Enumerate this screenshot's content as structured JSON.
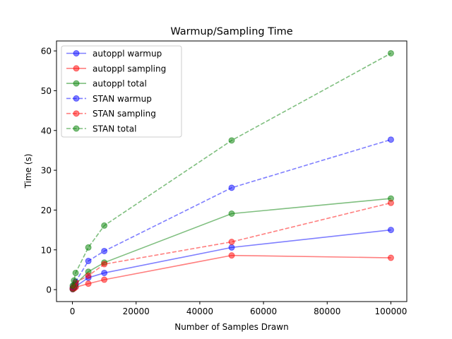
{
  "chart_data": {
    "type": "line",
    "title": "Warmup/Sampling Time",
    "xlabel": "Number of Samples Drawn",
    "ylabel": "Time (s)",
    "xlim": [
      -5000,
      105000
    ],
    "ylim": [
      -3,
      62.5
    ],
    "x_ticks": [
      0,
      20000,
      40000,
      60000,
      80000,
      100000
    ],
    "y_ticks": [
      0,
      10,
      20,
      30,
      40,
      50,
      60
    ],
    "grid": false,
    "legend_position": "top-left",
    "x": [
      100,
      500,
      1000,
      5000,
      10000,
      50000,
      100000
    ],
    "series": [
      {
        "name": "autoppl warmup",
        "color": "#0000ff",
        "dash": "solid",
        "values": [
          0.1,
          0.4,
          0.8,
          3.0,
          4.2,
          10.6,
          15.0
        ]
      },
      {
        "name": "autoppl sampling",
        "color": "#ff0000",
        "dash": "solid",
        "values": [
          0.1,
          0.3,
          0.6,
          1.5,
          2.5,
          8.6,
          8.0
        ]
      },
      {
        "name": "autoppl total",
        "color": "#008000",
        "dash": "solid",
        "values": [
          0.2,
          0.7,
          1.4,
          4.5,
          6.8,
          19.1,
          22.9
        ]
      },
      {
        "name": "STAN warmup",
        "color": "#0000ff",
        "dash": "dashed",
        "values": [
          0.5,
          1.2,
          2.0,
          7.2,
          9.7,
          25.6,
          37.7
        ]
      },
      {
        "name": "STAN sampling",
        "color": "#ff0000",
        "dash": "dashed",
        "values": [
          0.4,
          1.0,
          1.8,
          3.5,
          6.4,
          12.0,
          21.8
        ]
      },
      {
        "name": "STAN total",
        "color": "#008000",
        "dash": "dashed",
        "values": [
          1.0,
          2.3,
          4.2,
          10.6,
          16.1,
          37.5,
          59.4
        ]
      }
    ]
  }
}
